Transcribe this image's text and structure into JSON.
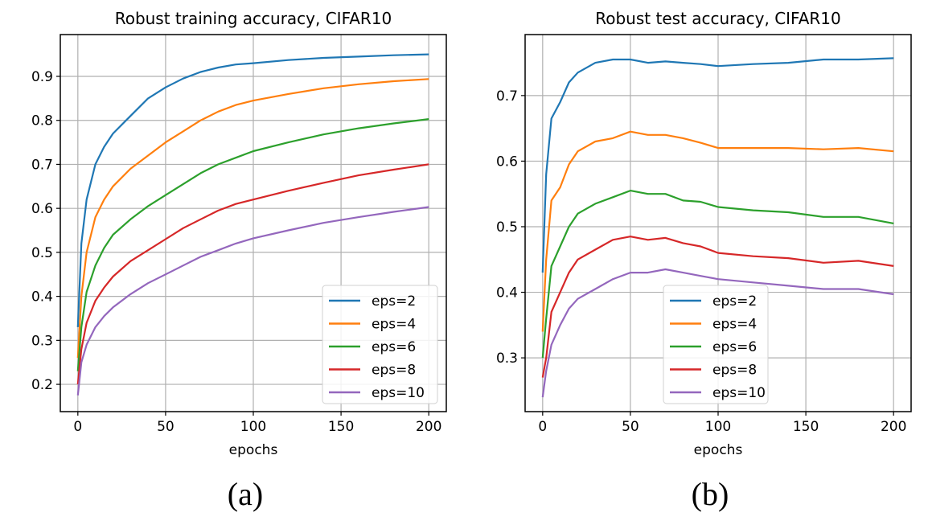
{
  "chart_data": [
    {
      "type": "line",
      "title": "Robust training accuracy, CIFAR10",
      "xlabel": "epochs",
      "ylabel": "",
      "caption": "(a)",
      "xlim": [
        -10,
        210
      ],
      "ylim": [
        0.138,
        0.995
      ],
      "xticks": [
        0,
        50,
        100,
        150,
        200
      ],
      "yticks": [
        0.2,
        0.3,
        0.4,
        0.5,
        0.6,
        0.7,
        0.8,
        0.9
      ],
      "grid": true,
      "legend_position": "lower-right",
      "x": [
        0,
        2,
        5,
        10,
        15,
        20,
        30,
        40,
        50,
        60,
        70,
        80,
        90,
        100,
        120,
        140,
        160,
        180,
        200
      ],
      "series": [
        {
          "name": "eps=2",
          "color": "#1f77b4",
          "values": [
            0.33,
            0.52,
            0.62,
            0.7,
            0.74,
            0.77,
            0.81,
            0.85,
            0.875,
            0.895,
            0.91,
            0.92,
            0.927,
            0.93,
            0.937,
            0.942,
            0.945,
            0.948,
            0.95
          ]
        },
        {
          "name": "eps=4",
          "color": "#ff7f0e",
          "values": [
            0.26,
            0.4,
            0.5,
            0.58,
            0.62,
            0.65,
            0.69,
            0.72,
            0.75,
            0.775,
            0.8,
            0.82,
            0.835,
            0.845,
            0.86,
            0.873,
            0.882,
            0.889,
            0.894
          ]
        },
        {
          "name": "eps=6",
          "color": "#2ca02c",
          "values": [
            0.23,
            0.33,
            0.41,
            0.47,
            0.51,
            0.54,
            0.575,
            0.605,
            0.63,
            0.655,
            0.68,
            0.7,
            0.715,
            0.73,
            0.75,
            0.768,
            0.782,
            0.793,
            0.803
          ]
        },
        {
          "name": "eps=8",
          "color": "#d62728",
          "values": [
            0.2,
            0.28,
            0.34,
            0.39,
            0.42,
            0.445,
            0.48,
            0.505,
            0.53,
            0.555,
            0.575,
            0.595,
            0.61,
            0.62,
            0.64,
            0.658,
            0.675,
            0.688,
            0.7
          ]
        },
        {
          "name": "eps=10",
          "color": "#9467bd",
          "values": [
            0.175,
            0.25,
            0.29,
            0.33,
            0.355,
            0.375,
            0.405,
            0.43,
            0.45,
            0.47,
            0.49,
            0.505,
            0.52,
            0.532,
            0.55,
            0.567,
            0.58,
            0.592,
            0.603
          ]
        }
      ]
    },
    {
      "type": "line",
      "title": "Robust test accuracy, CIFAR10",
      "xlabel": "epochs",
      "ylabel": "",
      "caption": "(b)",
      "xlim": [
        -10,
        210
      ],
      "ylim": [
        0.218,
        0.793
      ],
      "xticks": [
        0,
        50,
        100,
        150,
        200
      ],
      "yticks": [
        0.3,
        0.4,
        0.5,
        0.6,
        0.7
      ],
      "grid": true,
      "legend_position": "lower-center",
      "x": [
        0,
        2,
        5,
        10,
        15,
        20,
        30,
        40,
        50,
        60,
        70,
        80,
        90,
        100,
        120,
        140,
        160,
        180,
        200
      ],
      "series": [
        {
          "name": "eps=2",
          "color": "#1f77b4",
          "values": [
            0.43,
            0.58,
            0.665,
            0.69,
            0.72,
            0.735,
            0.75,
            0.755,
            0.755,
            0.75,
            0.752,
            0.75,
            0.748,
            0.745,
            0.748,
            0.75,
            0.755,
            0.755,
            0.757
          ]
        },
        {
          "name": "eps=4",
          "color": "#ff7f0e",
          "values": [
            0.34,
            0.45,
            0.54,
            0.56,
            0.595,
            0.615,
            0.63,
            0.635,
            0.645,
            0.64,
            0.64,
            0.635,
            0.628,
            0.62,
            0.62,
            0.62,
            0.618,
            0.62,
            0.615
          ]
        },
        {
          "name": "eps=6",
          "color": "#2ca02c",
          "values": [
            0.3,
            0.36,
            0.44,
            0.47,
            0.5,
            0.52,
            0.535,
            0.545,
            0.555,
            0.55,
            0.55,
            0.54,
            0.538,
            0.53,
            0.525,
            0.522,
            0.515,
            0.515,
            0.505
          ]
        },
        {
          "name": "eps=8",
          "color": "#d62728",
          "values": [
            0.27,
            0.3,
            0.37,
            0.4,
            0.43,
            0.45,
            0.465,
            0.48,
            0.485,
            0.48,
            0.483,
            0.475,
            0.47,
            0.46,
            0.455,
            0.452,
            0.445,
            0.448,
            0.44
          ]
        },
        {
          "name": "eps=10",
          "color": "#9467bd",
          "values": [
            0.24,
            0.28,
            0.32,
            0.35,
            0.375,
            0.39,
            0.405,
            0.42,
            0.43,
            0.43,
            0.435,
            0.43,
            0.425,
            0.42,
            0.415,
            0.41,
            0.405,
            0.405,
            0.397
          ]
        }
      ]
    }
  ]
}
